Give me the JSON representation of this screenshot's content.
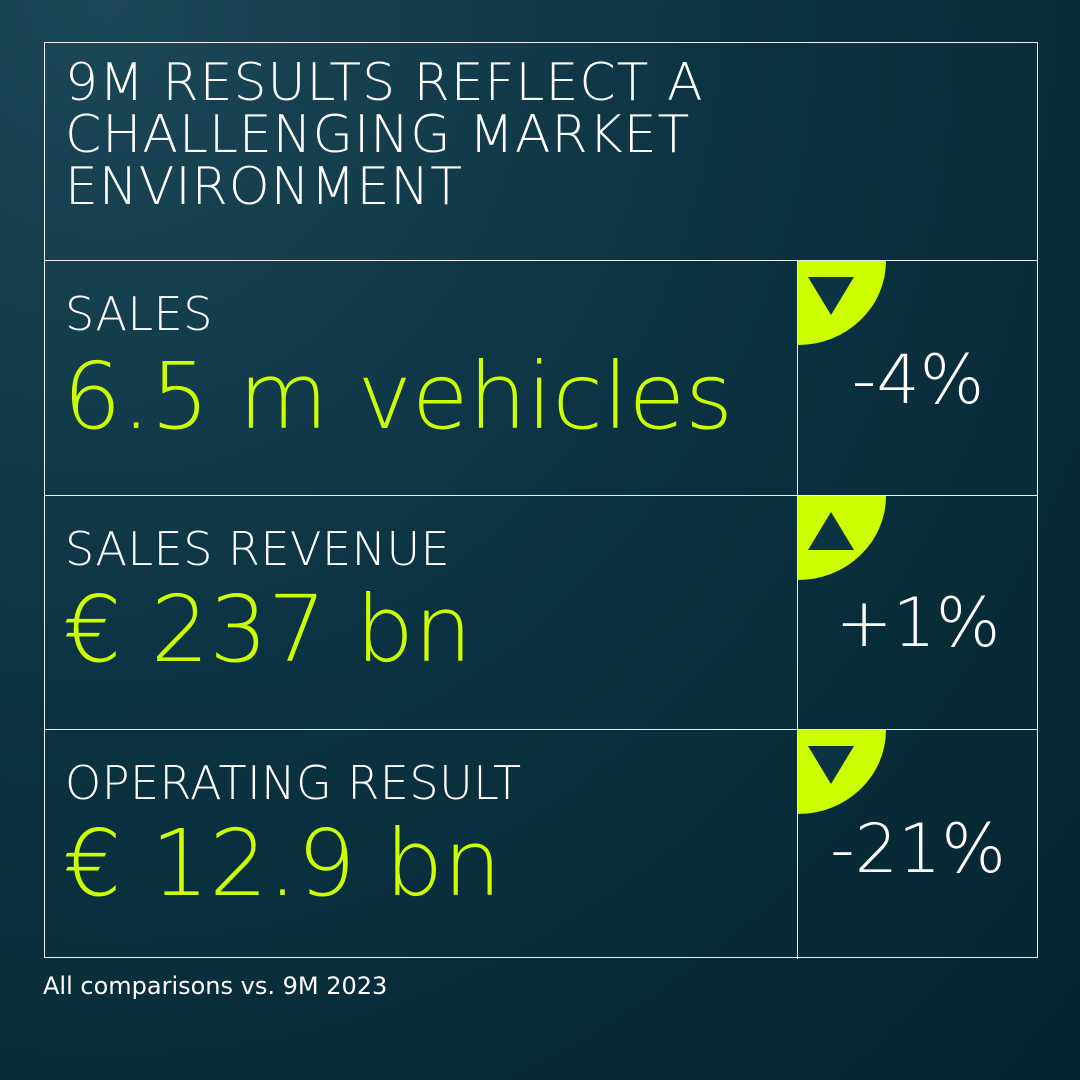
{
  "title": "9M RESULTS REFLECT A CHALLENGING MARKET ENVIRONMENT",
  "rows": [
    {
      "label": "SALES",
      "value": "6.5 m vehicles",
      "change": "-4%",
      "direction": "down-arrow-icon"
    },
    {
      "label": "SALES REVENUE",
      "value": "€ 237 bn",
      "change": "+1%",
      "direction": "up-arrow-icon"
    },
    {
      "label": "OPERATING RESULT",
      "value": "€ 12.9 bn",
      "change": "-21%",
      "direction": "down-arrow-icon"
    }
  ],
  "footnote": "All comparisons vs. 9M 2023",
  "colors": {
    "accent": "#ccff00",
    "background": "#0c3343",
    "text": "#ffffff"
  }
}
